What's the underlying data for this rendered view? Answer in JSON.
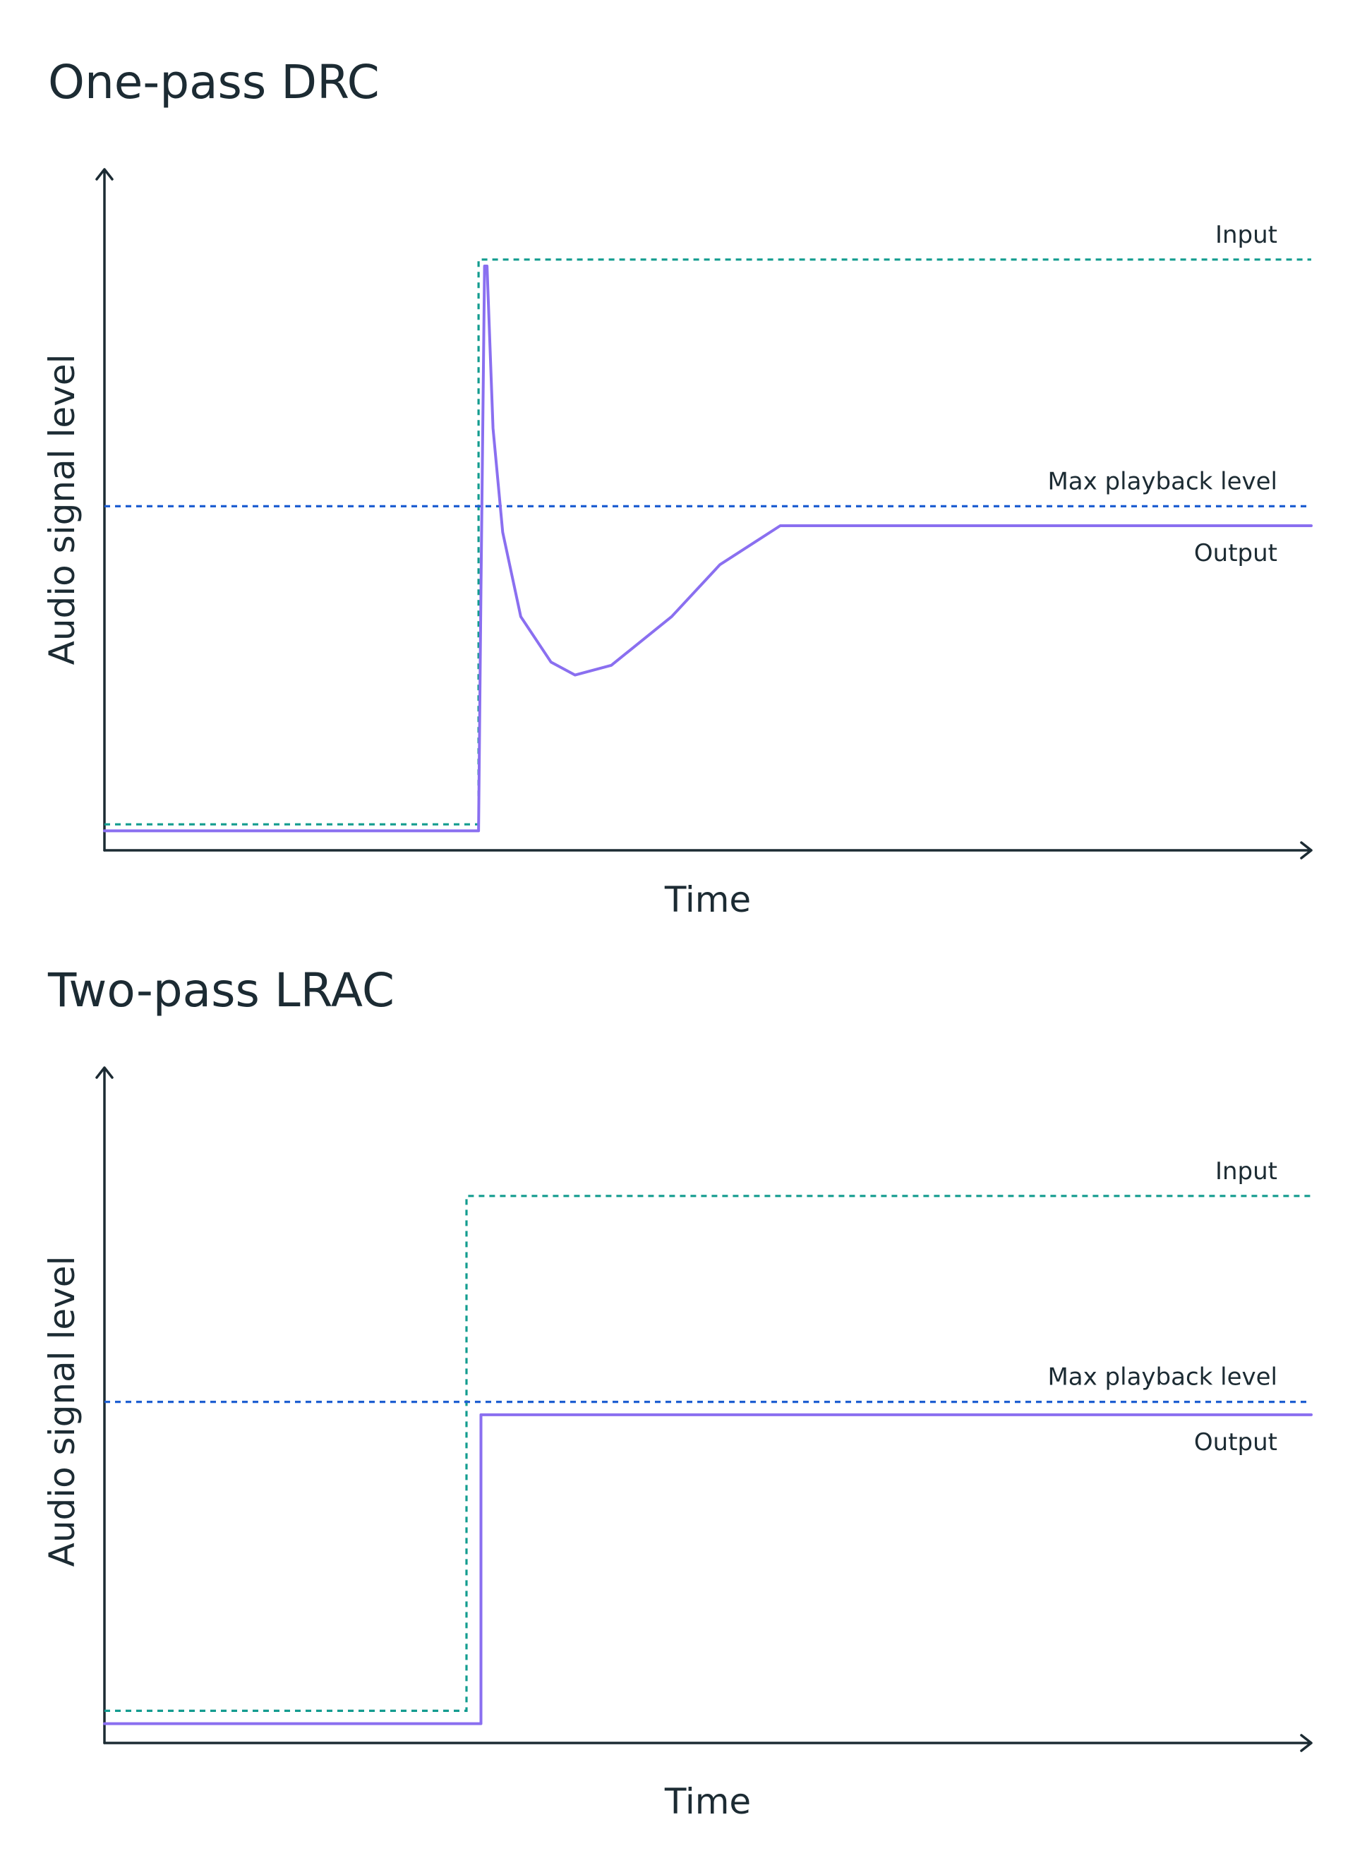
{
  "chart_data": [
    {
      "type": "line",
      "title": "One-pass DRC",
      "xlabel": "Time",
      "ylabel": "Audio signal level",
      "xlim": [
        0,
        1
      ],
      "ylim": [
        0,
        1
      ],
      "grid": false,
      "series": [
        {
          "name": "Input",
          "color": "#139c8f",
          "style": "dashed",
          "points": [
            [
              0.0,
              0.04
            ],
            [
              0.31,
              0.04
            ],
            [
              0.31,
              0.91
            ],
            [
              1.0,
              0.91
            ]
          ]
        },
        {
          "name": "Max playback level",
          "color": "#1f5fd1",
          "style": "dashed",
          "points": [
            [
              0.0,
              0.53
            ],
            [
              1.0,
              0.53
            ]
          ]
        },
        {
          "name": "Output",
          "color": "#8a6ff0",
          "style": "solid",
          "points": [
            [
              0.0,
              0.03
            ],
            [
              0.31,
              0.03
            ],
            [
              0.312,
              0.4
            ],
            [
              0.315,
              0.9
            ],
            [
              0.317,
              0.9
            ],
            [
              0.322,
              0.65
            ],
            [
              0.33,
              0.49
            ],
            [
              0.345,
              0.36
            ],
            [
              0.37,
              0.29
            ],
            [
              0.39,
              0.27
            ],
            [
              0.42,
              0.285
            ],
            [
              0.47,
              0.36
            ],
            [
              0.51,
              0.44
            ],
            [
              0.56,
              0.5
            ],
            [
              1.0,
              0.5
            ]
          ]
        }
      ]
    },
    {
      "type": "line",
      "title": "Two-pass LRAC",
      "xlabel": "Time",
      "ylabel": "Audio signal level",
      "xlim": [
        0,
        1
      ],
      "ylim": [
        0,
        1
      ],
      "grid": false,
      "series": [
        {
          "name": "Input",
          "color": "#139c8f",
          "style": "dashed",
          "points": [
            [
              0.0,
              0.05
            ],
            [
              0.3,
              0.05
            ],
            [
              0.3,
              0.85
            ],
            [
              1.0,
              0.85
            ]
          ]
        },
        {
          "name": "Max playback level",
          "color": "#1f5fd1",
          "style": "dashed",
          "points": [
            [
              0.0,
              0.53
            ],
            [
              1.0,
              0.53
            ]
          ]
        },
        {
          "name": "Output",
          "color": "#8a6ff0",
          "style": "solid",
          "points": [
            [
              0.0,
              0.03
            ],
            [
              0.312,
              0.03
            ],
            [
              0.312,
              0.51
            ],
            [
              1.0,
              0.51
            ]
          ]
        }
      ]
    }
  ]
}
